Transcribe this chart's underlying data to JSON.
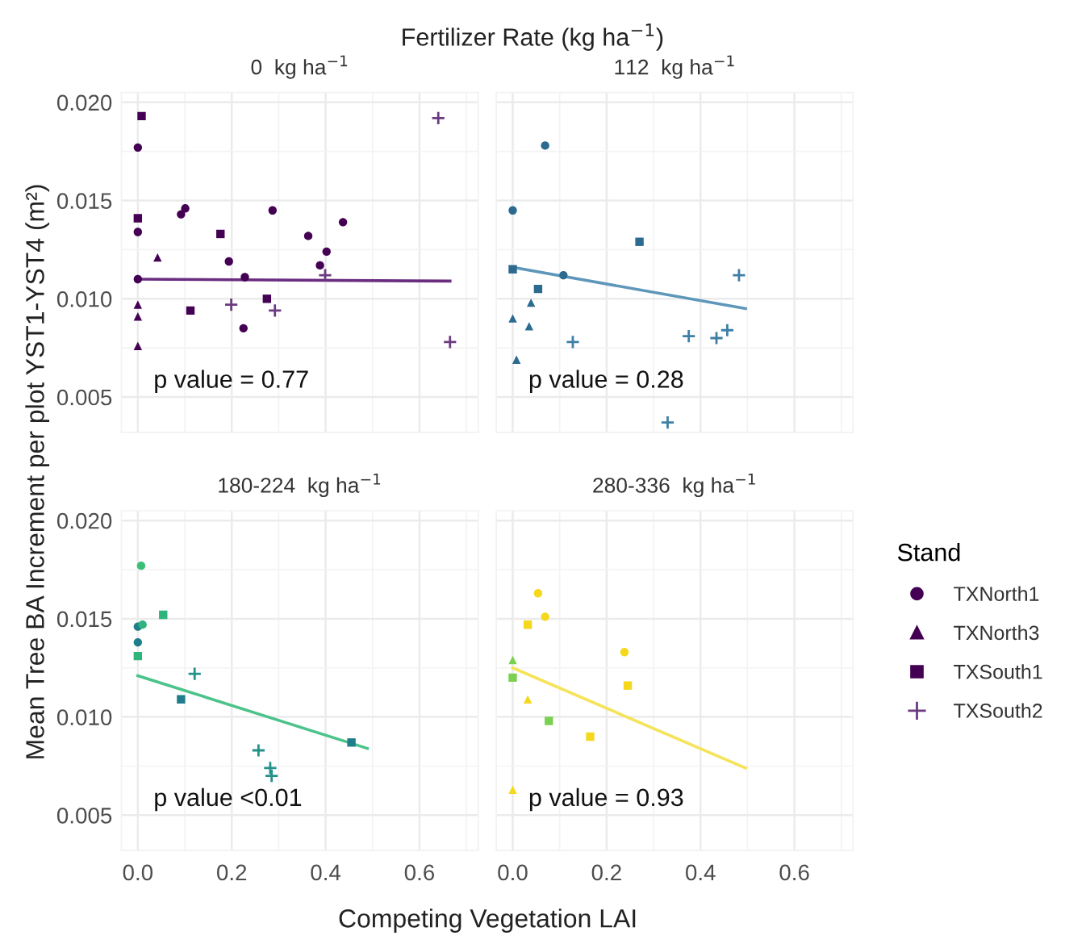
{
  "chart_data": [
    {
      "type": "scatter",
      "subtitle": "Fertilizer Rate (kg ha$^{−1}$)",
      "title": "0  kg ha$^{−1}$",
      "ylabel": "Mean Tree BA Increment per plot YST1-YST4 (m²)",
      "annotations": [
        "p value = 0.77"
      ],
      "xlim": [
        -0.035,
        0.725
      ],
      "ylim": [
        0.0032,
        0.0205
      ],
      "xticks": [
        0,
        0.2,
        0.4,
        0.6
      ],
      "yticks": [
        {
          "value": 0.005,
          "label": "0.005"
        },
        {
          "value": 0.01,
          "label": "0.010"
        },
        {
          "value": 0.015,
          "label": "0.015"
        },
        {
          "value": 0.02,
          "label": "0.020"
        }
      ],
      "grid": true,
      "tick_labels": "y",
      "legend": "right",
      "legend_title": "Stand",
      "series": [
        {
          "name": "TXNorth1",
          "marker": "circle",
          "x": [
            0,
            0,
            0,
            0.092,
            0.101,
            0.194,
            0.228,
            0.225,
            0.287,
            0.363,
            0.402,
            0.388,
            0.437
          ],
          "values": [
            0.0177,
            0.0134,
            0.011,
            0.0143,
            0.0146,
            0.0119,
            0.0111,
            0.0085,
            0.0145,
            0.0132,
            0.0124,
            0.0117,
            0.0139
          ],
          "colors": [
            "#440154",
            "#440154",
            "#440154",
            "#440154",
            "#440154",
            "#440154",
            "#440154",
            "#440154",
            "#440154",
            "#440154",
            "#440154",
            "#440154",
            "#440154"
          ]
        },
        {
          "name": "TXNorth3",
          "marker": "triangle",
          "x": [
            0,
            0,
            0.042,
            0
          ],
          "values": [
            0.0097,
            0.0091,
            0.0121,
            0.0076
          ],
          "colors": [
            "#440154",
            "#440154",
            "#440154",
            "#440154"
          ]
        },
        {
          "name": "TXSouth1",
          "marker": "square",
          "x": [
            0.008,
            0,
            0.176,
            0.112,
            0.275
          ],
          "values": [
            0.0193,
            0.0141,
            0.0133,
            0.0094,
            0.01
          ],
          "colors": [
            "#440154",
            "#440154",
            "#440154",
            "#440154",
            "#440154"
          ]
        },
        {
          "name": "TXSouth2",
          "marker": "cross",
          "x": [
            0.64,
            0.665,
            0.199,
            0.292,
            0.399
          ],
          "values": [
            0.0192,
            0.0078,
            0.0097,
            0.0094,
            0.0112
          ],
          "colors": [
            "#6b3a80",
            "#6b3a80",
            "#6b3a80",
            "#6b3a80",
            "#6b3a80"
          ]
        },
        {
          "type": "line",
          "color": "#6a2d80",
          "x": [
            0,
            0.665
          ],
          "values": [
            0.011,
            0.0109
          ]
        }
      ]
    },
    {
      "type": "scatter",
      "title": "112  kg ha$^{−1}$",
      "annotations": [
        "p value = 0.28"
      ],
      "xlim": [
        -0.035,
        0.725
      ],
      "ylim": [
        0.0032,
        0.0205
      ],
      "xticks": [
        0,
        0.2,
        0.4,
        0.6
      ],
      "yticks": [
        0.005,
        0.01,
        0.015,
        0.02
      ],
      "grid": true,
      "tick_labels": false,
      "series": [
        {
          "marker": "circle",
          "x": [
            0.069,
            0,
            0.108
          ],
          "values": [
            0.0178,
            0.0145,
            0.0112
          ],
          "colors": [
            "#2c6a8f",
            "#2c6a8f",
            "#2c6a8f"
          ]
        },
        {
          "marker": "triangle",
          "x": [
            0,
            0.039,
            0.035,
            0.008
          ],
          "values": [
            0.009,
            0.0098,
            0.0086,
            0.0069
          ],
          "colors": [
            "#2c6a8f",
            "#2c6a8f",
            "#2c6a8f",
            "#2c6a8f"
          ]
        },
        {
          "marker": "square",
          "x": [
            0,
            0.054,
            0.27
          ],
          "values": [
            0.0115,
            0.0105,
            0.0129
          ],
          "colors": [
            "#2c6a8f",
            "#2c6a8f",
            "#2c6a8f"
          ]
        },
        {
          "marker": "cross",
          "x": [
            0.482,
            0.128,
            0.375,
            0.434,
            0.457,
            0.33
          ],
          "values": [
            0.0112,
            0.0078,
            0.0081,
            0.008,
            0.0084,
            0.0037
          ],
          "colors": [
            "#3e7fa6",
            "#3e7fa6",
            "#3e7fa6",
            "#3e7fa6",
            "#3e7fa6",
            "#3e7fa6"
          ]
        },
        {
          "type": "line",
          "color": "#5f97ba",
          "x": [
            0,
            0.496
          ],
          "values": [
            0.0116,
            0.0095
          ]
        }
      ]
    },
    {
      "type": "scatter",
      "title": "180-224  kg ha$^{−1}$",
      "xlabel": "Competing Vegetation LAI",
      "annotations": [
        "p value <0.01"
      ],
      "xlim": [
        -0.035,
        0.725
      ],
      "ylim": [
        0.0032,
        0.0205
      ],
      "xticks": [
        {
          "value": 0,
          "label": "0.0"
        },
        {
          "value": 0.2,
          "label": "0.2"
        },
        {
          "value": 0.4,
          "label": "0.4"
        },
        {
          "value": 0.6,
          "label": "0.6"
        }
      ],
      "yticks": [
        {
          "value": 0.005,
          "label": "0.005"
        },
        {
          "value": 0.01,
          "label": "0.010"
        },
        {
          "value": 0.015,
          "label": "0.015"
        },
        {
          "value": 0.02,
          "label": "0.020"
        }
      ],
      "grid": true,
      "series": [
        {
          "marker": "circle",
          "x": [
            0.007,
            0,
            0.01,
            0
          ],
          "values": [
            0.0177,
            0.0146,
            0.0147,
            0.0138
          ],
          "colors": [
            "#3bbf77",
            "#1f7d8c",
            "#2fb47c",
            "#1f7d8c"
          ]
        },
        {
          "marker": "square",
          "x": [
            0.054,
            0,
            0.092,
            0.455
          ],
          "values": [
            0.0152,
            0.0131,
            0.0109,
            0.0087
          ],
          "colors": [
            "#2fb47c",
            "#2fb47c",
            "#1f7d8c",
            "#1f7d8c"
          ]
        },
        {
          "marker": "cross",
          "x": [
            0.121,
            0.257,
            0.282,
            0.285
          ],
          "values": [
            0.0122,
            0.0083,
            0.0074,
            0.007
          ],
          "colors": [
            "#23918a",
            "#23918a",
            "#23918a",
            "#23918a"
          ]
        },
        {
          "type": "line",
          "color": "#4cc38a",
          "x": [
            0,
            0.489
          ],
          "values": [
            0.0121,
            0.0084
          ]
        }
      ]
    },
    {
      "type": "scatter",
      "title": "280-336  kg ha$^{−1}$",
      "annotations": [
        "p value = 0.93"
      ],
      "xlim": [
        -0.035,
        0.725
      ],
      "ylim": [
        0.0032,
        0.0205
      ],
      "xticks": [
        {
          "value": 0,
          "label": "0.0"
        },
        {
          "value": 0.2,
          "label": "0.2"
        },
        {
          "value": 0.4,
          "label": "0.4"
        },
        {
          "value": 0.6,
          "label": "0.6"
        }
      ],
      "yticks": [
        0.005,
        0.01,
        0.015,
        0.02
      ],
      "grid": true,
      "tick_labels": "x",
      "series": [
        {
          "marker": "circle",
          "x": [
            0.054,
            0.069,
            0.238
          ],
          "values": [
            0.0163,
            0.0151,
            0.0133
          ],
          "colors": [
            "#f5d81e",
            "#f5d81e",
            "#f5d81e"
          ]
        },
        {
          "marker": "triangle",
          "x": [
            0,
            0.032,
            0
          ],
          "values": [
            0.0129,
            0.0109,
            0.0063
          ],
          "colors": [
            "#7ad151",
            "#f5d81e",
            "#f5d81e"
          ]
        },
        {
          "marker": "square",
          "x": [
            0.032,
            0,
            0.245,
            0.077,
            0.165
          ],
          "values": [
            0.0147,
            0.012,
            0.0116,
            0.0098,
            0.009
          ],
          "colors": [
            "#f5d81e",
            "#7ad151",
            "#f5d81e",
            "#7ad151",
            "#f5d81e"
          ]
        },
        {
          "type": "line",
          "color": "#f5e35a",
          "x": [
            0,
            0.496
          ],
          "values": [
            0.0125,
            0.0074
          ]
        }
      ]
    }
  ]
}
